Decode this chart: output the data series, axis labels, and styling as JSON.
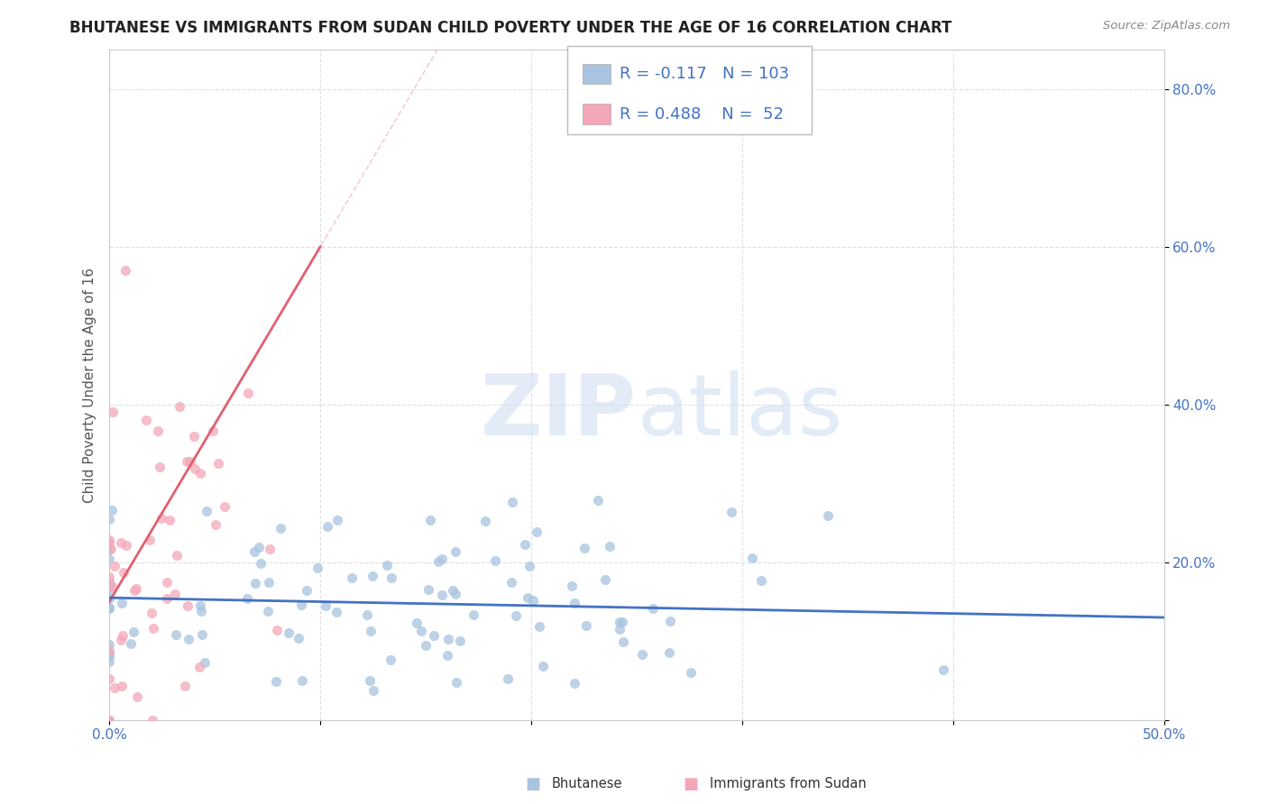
{
  "title": "BHUTANESE VS IMMIGRANTS FROM SUDAN CHILD POVERTY UNDER THE AGE OF 16 CORRELATION CHART",
  "source": "Source: ZipAtlas.com",
  "ylabel": "Child Poverty Under the Age of 16",
  "xlim": [
    0.0,
    0.5
  ],
  "ylim": [
    0.0,
    0.85
  ],
  "bhutanese_color": "#a8c4e0",
  "sudan_color": "#f4a7b9",
  "bhutanese_line_color": "#4472c4",
  "sudan_line_color": "#e06070",
  "sudan_line_color2": "#f0b0b8",
  "R_bhutanese": -0.117,
  "N_bhutanese": 103,
  "R_sudan": 0.488,
  "N_sudan": 52,
  "watermark": "ZIPatlas",
  "title_fontsize": 12,
  "label_fontsize": 11,
  "tick_fontsize": 11,
  "legend_fontsize": 13
}
